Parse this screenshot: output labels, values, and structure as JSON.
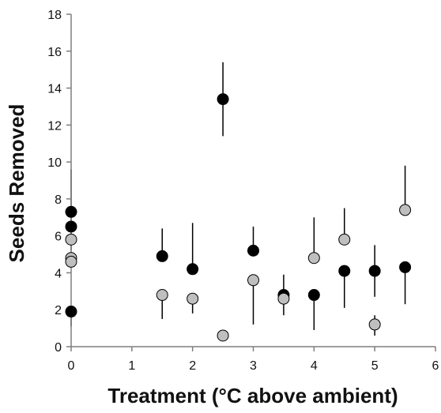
{
  "chart_data": {
    "type": "scatter",
    "xlabel": "Treatment (°C above ambient)",
    "ylabel": "Seeds Removed",
    "xlim": [
      0,
      6
    ],
    "ylim": [
      0,
      18
    ],
    "xticks": [
      0,
      1,
      2,
      3,
      4,
      5,
      6
    ],
    "yticks": [
      0,
      2,
      4,
      6,
      8,
      10,
      12,
      14,
      16,
      18
    ],
    "grid": false,
    "legend": "none",
    "series": [
      {
        "color": "#000000",
        "points": [
          {
            "x": 0,
            "y": 7.3,
            "err_low": 5.2,
            "err_high": 9.6
          },
          {
            "x": 0,
            "y": 6.5,
            "err_low": 6.5,
            "err_high": 6.5
          },
          {
            "x": 0,
            "y": 1.9,
            "err_low": 1.1,
            "err_high": 1.9
          },
          {
            "x": 1.5,
            "y": 4.9,
            "err_low": 4.9,
            "err_high": 6.4
          },
          {
            "x": 2,
            "y": 4.2,
            "err_low": 4.2,
            "err_high": 6.7
          },
          {
            "x": 2.5,
            "y": 13.4,
            "err_low": 11.4,
            "err_high": 15.4
          },
          {
            "x": 3,
            "y": 5.2,
            "err_low": 5.2,
            "err_high": 6.5
          },
          {
            "x": 3.5,
            "y": 2.8,
            "err_low": 2.8,
            "err_high": 3.9
          },
          {
            "x": 4,
            "y": 2.8,
            "err_low": 0.9,
            "err_high": 2.8
          },
          {
            "x": 4.5,
            "y": 4.1,
            "err_low": 2.1,
            "err_high": 4.1
          },
          {
            "x": 5,
            "y": 4.1,
            "err_low": 2.7,
            "err_high": 5.5
          },
          {
            "x": 5.5,
            "y": 4.3,
            "err_low": 2.3,
            "err_high": 4.3
          }
        ]
      },
      {
        "color": "#bfbfbf",
        "points": [
          {
            "x": 0,
            "y": 5.8,
            "err_low": 5.8,
            "err_high": 5.8
          },
          {
            "x": 0,
            "y": 4.8,
            "err_low": 4.8,
            "err_high": 4.8
          },
          {
            "x": 0,
            "y": 4.6,
            "err_low": 4.6,
            "err_high": 4.6
          },
          {
            "x": 1.5,
            "y": 2.8,
            "err_low": 1.5,
            "err_high": 2.8
          },
          {
            "x": 2,
            "y": 2.6,
            "err_low": 1.8,
            "err_high": 2.6
          },
          {
            "x": 2.5,
            "y": 0.6,
            "err_low": 0.4,
            "err_high": 0.9
          },
          {
            "x": 3,
            "y": 3.6,
            "err_low": 1.2,
            "err_high": 3.6
          },
          {
            "x": 3.5,
            "y": 2.6,
            "err_low": 1.7,
            "err_high": 2.6
          },
          {
            "x": 4,
            "y": 4.8,
            "err_low": 4.8,
            "err_high": 7.0
          },
          {
            "x": 4.5,
            "y": 5.8,
            "err_low": 5.8,
            "err_high": 7.5
          },
          {
            "x": 5,
            "y": 1.2,
            "err_low": 0.6,
            "err_high": 1.7
          },
          {
            "x": 5.5,
            "y": 7.4,
            "err_low": 7.4,
            "err_high": 9.8
          }
        ]
      }
    ]
  }
}
